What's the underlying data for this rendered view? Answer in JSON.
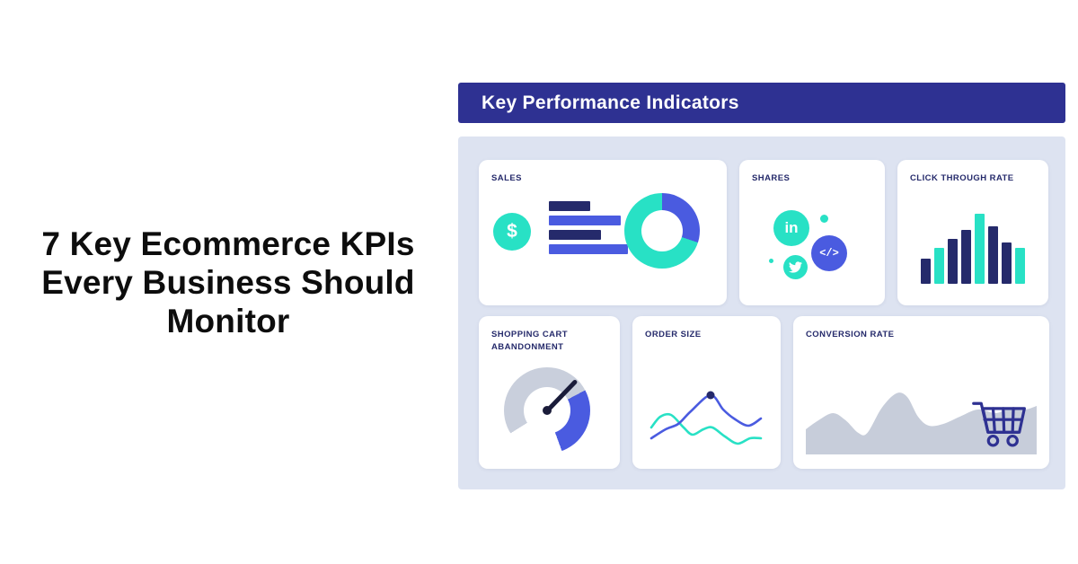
{
  "headline": {
    "lines": [
      "7 Key Ecommerce KPIs",
      "Every Business Should",
      "Monitor"
    ]
  },
  "dashboard": {
    "header": {
      "title": "Key Performance Indicators"
    },
    "cards": {
      "sales": {
        "title": "SALES",
        "coin_symbol": "$"
      },
      "shares": {
        "title": "SHARES",
        "linkedin_label": "in",
        "code_label": "</>"
      },
      "ctr": {
        "title": "CLICK THROUGH RATE"
      },
      "cart_abandonment": {
        "title": "SHOPPING CART ABANDONMENT"
      },
      "order_size": {
        "title": "ORDER SIZE"
      },
      "conversion": {
        "title": "CONVERSION RATE"
      }
    }
  },
  "colors": {
    "navy": "#2e3192",
    "dark_navy": "#252a6b",
    "royal": "#4a5be0",
    "teal": "#28e1c5",
    "panel_bg": "#dde3f1",
    "card_bg": "#ffffff",
    "gauge_gray": "#c9cfdc",
    "area_gray": "#c7cdda",
    "needle": "#1a1c3a",
    "headline_text": "#0d0d0d",
    "white": "#ffffff"
  },
  "chart_data": [
    {
      "id": "sales_bars",
      "type": "bar",
      "orientation": "horizontal",
      "mount": "sales-bar-chart",
      "label": "SALES",
      "values": [
        46,
        80,
        58,
        88
      ],
      "bar_colors": [
        "dark_navy",
        "royal",
        "dark_navy",
        "royal"
      ]
    },
    {
      "id": "ctr_bars",
      "type": "bar",
      "orientation": "vertical",
      "mount": "ctr-bar-chart",
      "label": "CLICK THROUGH RATE",
      "values": [
        28,
        40,
        50,
        60,
        78,
        64,
        46,
        40
      ],
      "bar_colors": [
        "dark_navy",
        "teal",
        "dark_navy",
        "dark_navy",
        "teal",
        "dark_navy",
        "dark_navy",
        "teal"
      ]
    },
    {
      "id": "sales_donut",
      "type": "donut",
      "mount": "sales-donut-chart",
      "segments": [
        {
          "color": "royal",
          "from": 0,
          "to": 108
        },
        {
          "color": "teal",
          "from": 108,
          "to": 360
        }
      ]
    },
    {
      "id": "abandonment_gauge",
      "type": "gauge",
      "mount": "gauge-ring",
      "segments": [
        {
          "color": "gauge_gray",
          "from": 0,
          "to": 62
        },
        {
          "color": "royal",
          "from": 62,
          "to": 160
        },
        {
          "color": "white",
          "from": 160,
          "to": 238
        },
        {
          "color": "gauge_gray",
          "from": 238,
          "to": 360
        }
      ],
      "needle_angle": 44
    },
    {
      "id": "order_size_lines",
      "type": "line",
      "label": "ORDER SIZE",
      "series": [
        {
          "name": "royal-line",
          "mount": "order-line-royal",
          "points": [
            [
              4,
              64
            ],
            [
              20,
              54
            ],
            [
              34,
              48
            ],
            [
              48,
              34
            ],
            [
              70,
              16
            ],
            [
              84,
              32
            ],
            [
              96,
              42
            ],
            [
              112,
              50
            ],
            [
              126,
              42
            ]
          ]
        },
        {
          "name": "teal-line",
          "mount": "order-line-teal",
          "points": [
            [
              4,
              52
            ],
            [
              14,
              40
            ],
            [
              26,
              38
            ],
            [
              40,
              52
            ],
            [
              50,
              60
            ],
            [
              62,
              54
            ],
            [
              72,
              52
            ],
            [
              86,
              62
            ],
            [
              100,
              70
            ],
            [
              114,
              64
            ],
            [
              126,
              64
            ]
          ]
        }
      ],
      "dot": {
        "mount": "order-line-dot",
        "x": 70,
        "y": 16,
        "r": 4.5
      }
    },
    {
      "id": "conversion_area",
      "type": "area",
      "mount": "conversion-area-path",
      "label": "CONVERSION RATE",
      "points": [
        [
          0,
          54
        ],
        [
          14,
          44
        ],
        [
          30,
          36
        ],
        [
          44,
          44
        ],
        [
          58,
          58
        ],
        [
          68,
          58
        ],
        [
          84,
          30
        ],
        [
          100,
          14
        ],
        [
          112,
          18
        ],
        [
          124,
          40
        ],
        [
          136,
          50
        ],
        [
          152,
          48
        ],
        [
          170,
          40
        ],
        [
          190,
          32
        ],
        [
          210,
          36
        ],
        [
          228,
          30
        ],
        [
          242,
          32
        ],
        [
          255,
          28
        ]
      ],
      "close": [
        255,
        82,
        0,
        82
      ]
    }
  ]
}
